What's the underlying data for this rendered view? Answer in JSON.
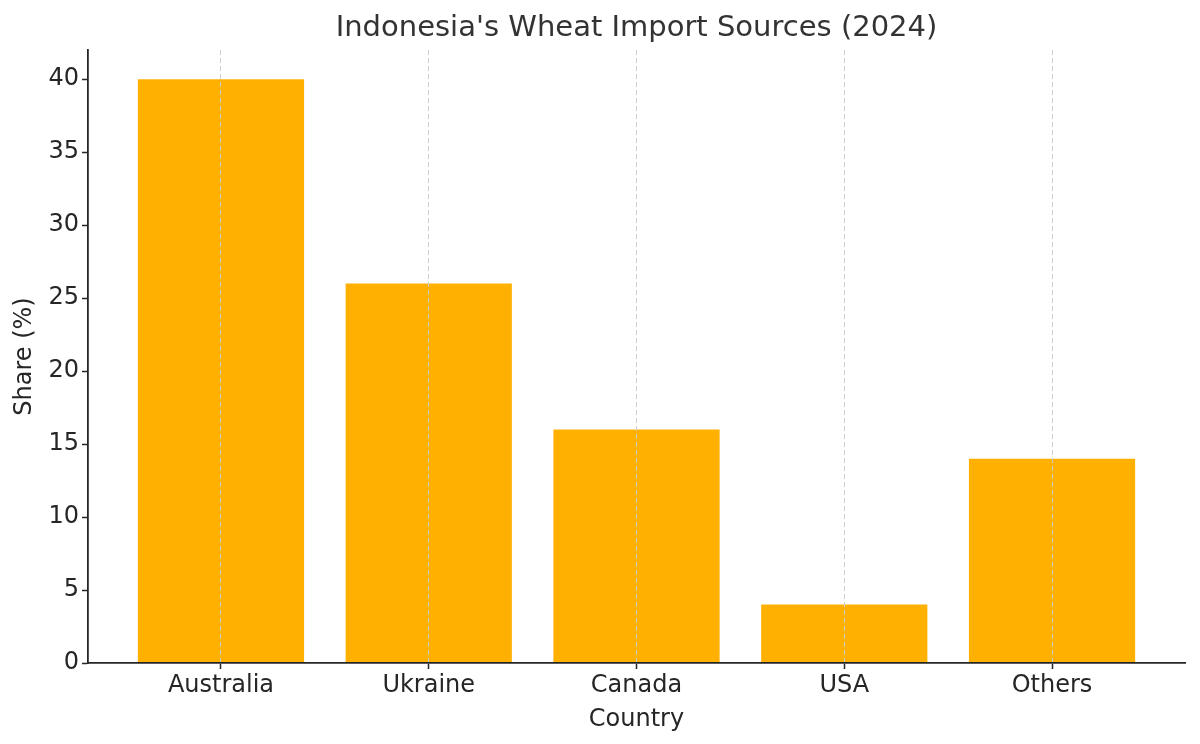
{
  "chart_data": {
    "type": "bar",
    "title": "Indonesia's Wheat Import Sources (2024)",
    "xlabel": "Country",
    "ylabel": "Share (%)",
    "categories": [
      "Australia",
      "Ukraine",
      "Canada",
      "USA",
      "Others"
    ],
    "values": [
      40,
      26,
      16,
      4,
      14
    ],
    "color": "#ffb000",
    "ylim": [
      0,
      42
    ],
    "yticks": [
      0,
      5,
      10,
      15,
      20,
      25,
      30,
      35,
      40
    ],
    "grid": "x"
  }
}
